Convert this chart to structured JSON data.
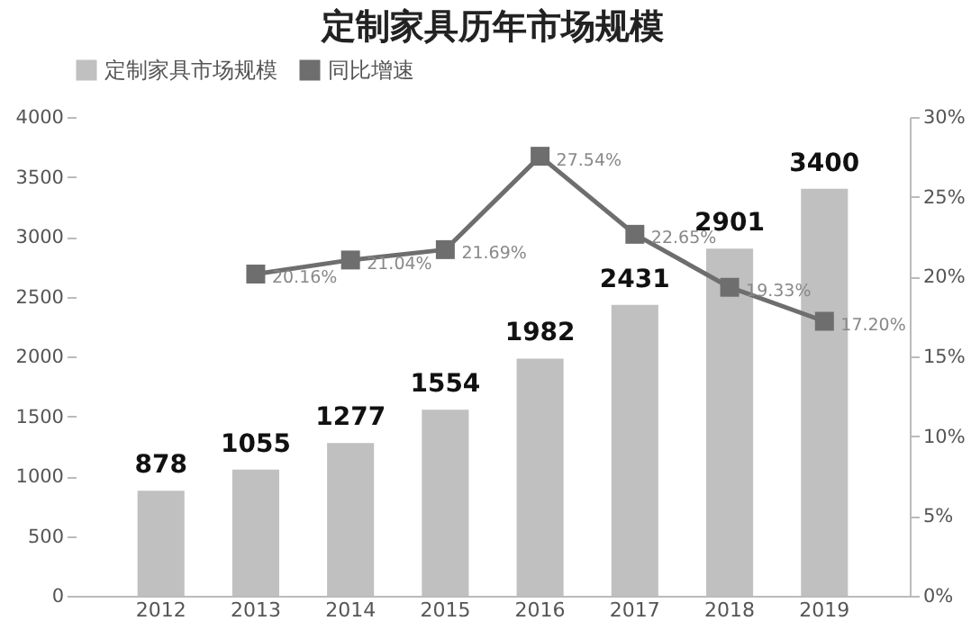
{
  "chart_data": {
    "type": "bar",
    "title": "定制家具历年市场规模",
    "categories": [
      "2012",
      "2013",
      "2014",
      "2015",
      "2016",
      "2017",
      "2018",
      "2019"
    ],
    "series": [
      {
        "name": "定制家具市场规模",
        "color": "#c0c0c0",
        "values": [
          878,
          1055,
          1277,
          1554,
          1982,
          2431,
          2901,
          3400
        ]
      },
      {
        "name": "同比增速",
        "type": "line",
        "axis": "y2",
        "color": "#6e6e6e",
        "marker": "square",
        "values": [
          null,
          20.16,
          21.04,
          21.69,
          27.54,
          22.65,
          19.33,
          17.2
        ],
        "value_labels": [
          null,
          "20.16%",
          "21.04%",
          "21.69%",
          "27.54%",
          "22.65%",
          "19.33%",
          "17.20%"
        ]
      }
    ],
    "data_labels": true,
    "ylim": [
      0,
      4000
    ],
    "yticks": [
      0,
      500,
      1000,
      1500,
      2000,
      2500,
      3000,
      3500,
      4000
    ],
    "y2lim": [
      0,
      30
    ],
    "y2ticks": [
      {
        "value": 0,
        "label": "0%"
      },
      {
        "value": 5,
        "label": "5%"
      },
      {
        "value": 10,
        "label": "10%"
      },
      {
        "value": 15,
        "label": "15%"
      },
      {
        "value": 20,
        "label": "20%"
      },
      {
        "value": 25,
        "label": "25%"
      },
      {
        "value": 30,
        "label": "30%"
      }
    ],
    "legend": "top"
  }
}
